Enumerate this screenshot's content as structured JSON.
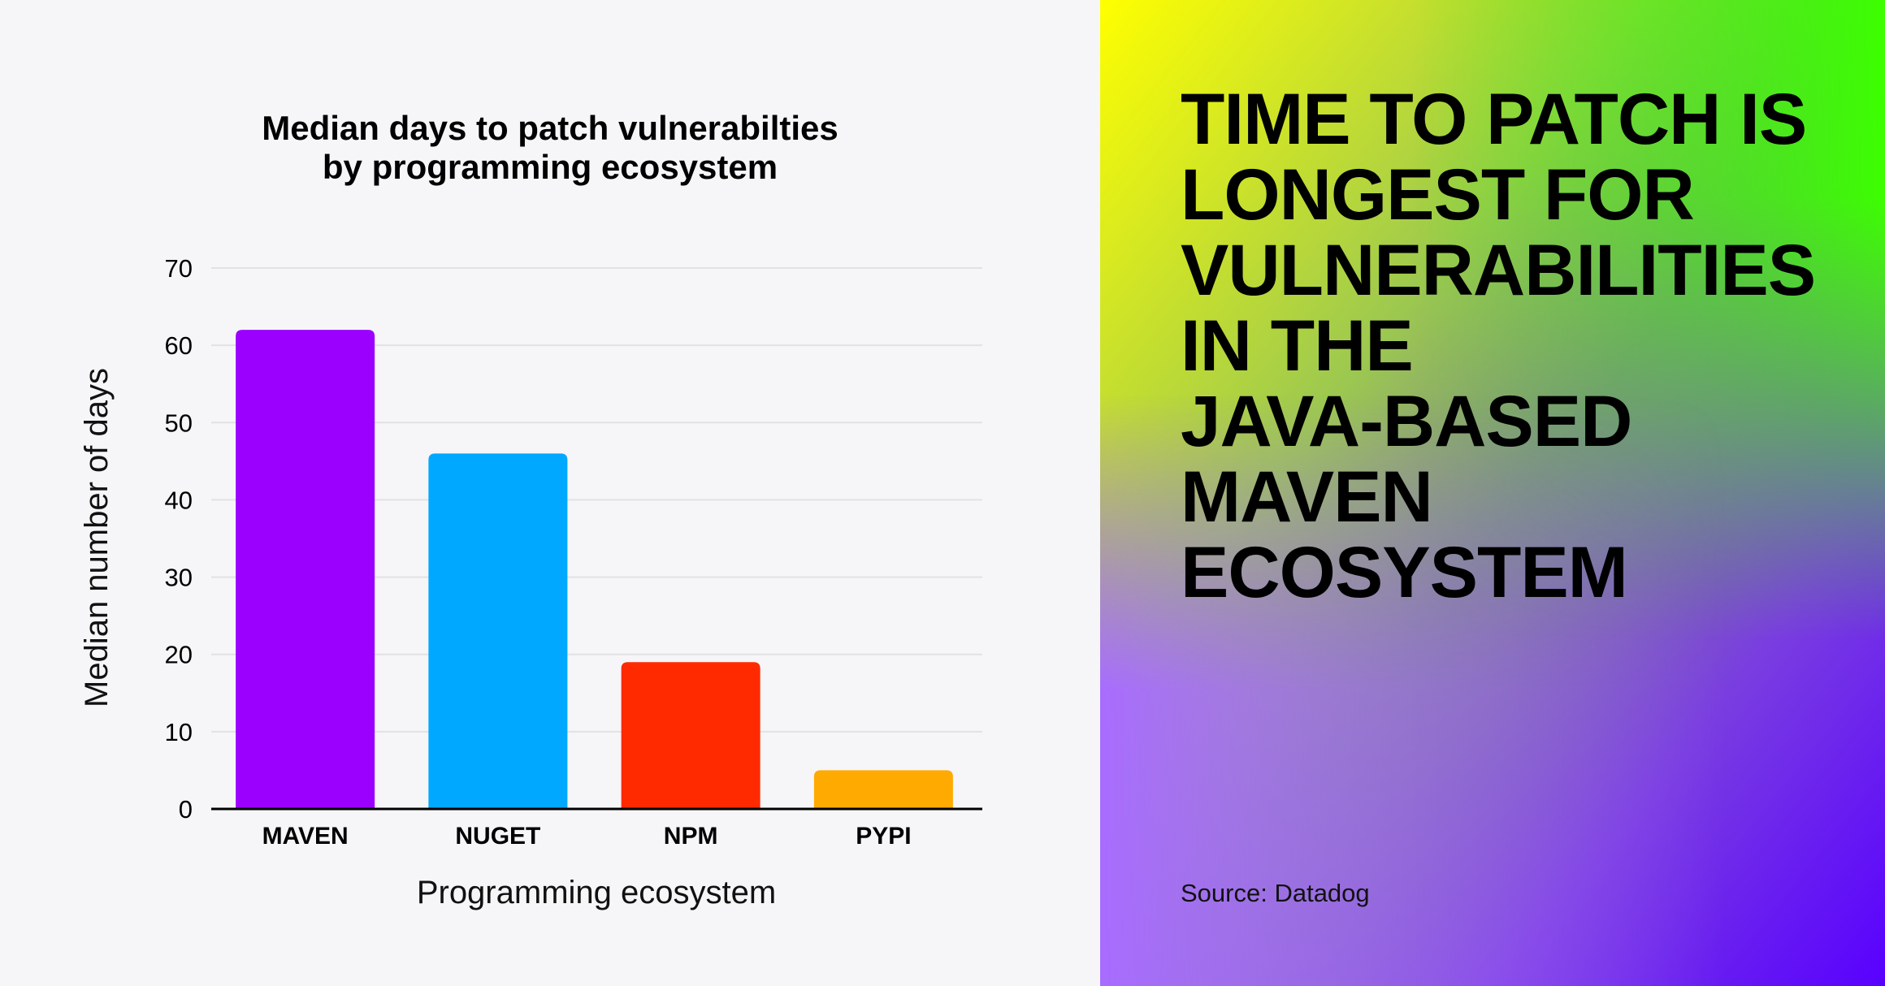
{
  "chart_data": {
    "type": "bar",
    "title": "Median days to patch vulnerabilties by programming ecosystem",
    "title_lines": [
      "Median days to patch vulnerabilties",
      "by programming ecosystem"
    ],
    "xlabel": "Programming ecosystem",
    "ylabel": "Median number of days",
    "categories": [
      "MAVEN",
      "NUGET",
      "NPM",
      "PYPI"
    ],
    "values": [
      62,
      46,
      19,
      5
    ],
    "colors": [
      "#9b00ff",
      "#00a8ff",
      "#ff2a00",
      "#ffaa00"
    ],
    "ylim": [
      0,
      70
    ],
    "yticks": [
      0,
      10,
      20,
      30,
      40,
      50,
      60,
      70
    ],
    "grid": true,
    "legend": "none"
  },
  "panel": {
    "headline_lines": [
      "TIME TO PATCH IS",
      "LONGEST FOR",
      "VULNERABILITIES",
      "IN THE",
      "JAVA-BASED",
      "MAVEN",
      "ECOSYSTEM"
    ],
    "source": "Source: Datadog",
    "gradient_colors": [
      "#ffff00",
      "#44ff00",
      "#5800ff",
      "#a86bff"
    ]
  }
}
